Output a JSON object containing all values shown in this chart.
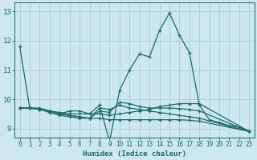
{
  "xlabel": "Humidex (Indice chaleur)",
  "bg_color": "#cce8ee",
  "line_color": "#1a6b6b",
  "grid_color": "#a8cdd4",
  "xlim": [
    -0.5,
    23.5
  ],
  "ylim": [
    8.7,
    13.3
  ],
  "yticks": [
    9,
    10,
    11,
    12,
    13
  ],
  "xticks": [
    0,
    1,
    2,
    3,
    4,
    5,
    6,
    7,
    8,
    9,
    10,
    11,
    12,
    13,
    14,
    15,
    16,
    17,
    18,
    19,
    20,
    21,
    22,
    23
  ],
  "lines": [
    {
      "x": [
        0,
        1,
        2,
        3,
        4,
        5,
        6,
        7,
        8,
        9,
        10,
        11,
        12,
        13,
        14,
        15,
        16,
        17,
        18,
        19,
        20,
        21,
        22,
        23
      ],
      "y": [
        11.8,
        9.7,
        9.7,
        9.6,
        9.5,
        9.6,
        9.6,
        9.5,
        9.8,
        8.55,
        10.3,
        11.0,
        11.55,
        11.45,
        12.35,
        12.95,
        12.2,
        11.6,
        9.8,
        9.3,
        9.2,
        9.1,
        9.05,
        8.9
      ]
    },
    {
      "x": [
        0,
        1,
        2,
        3,
        4,
        5,
        6,
        7,
        8,
        9,
        10,
        11,
        12,
        13,
        14,
        15,
        16,
        17,
        18,
        23
      ],
      "y": [
        9.7,
        9.7,
        9.65,
        9.6,
        9.55,
        9.5,
        9.5,
        9.5,
        9.5,
        9.45,
        9.5,
        9.55,
        9.6,
        9.65,
        9.75,
        9.8,
        9.85,
        9.85,
        9.85,
        8.9
      ]
    },
    {
      "x": [
        0,
        1,
        2,
        3,
        4,
        5,
        6,
        7,
        8,
        9,
        10,
        11,
        12,
        13,
        14,
        15,
        16,
        17,
        18,
        23
      ],
      "y": [
        9.7,
        9.7,
        9.65,
        9.55,
        9.45,
        9.4,
        9.35,
        9.35,
        9.6,
        9.55,
        9.9,
        9.85,
        9.75,
        9.7,
        9.7,
        9.7,
        9.68,
        9.65,
        9.6,
        8.9
      ]
    },
    {
      "x": [
        0,
        1,
        2,
        3,
        4,
        5,
        6,
        7,
        8,
        9,
        10,
        11,
        12,
        13,
        14,
        15,
        16,
        17,
        18,
        23
      ],
      "y": [
        9.7,
        9.7,
        9.65,
        9.6,
        9.5,
        9.45,
        9.4,
        9.35,
        9.35,
        9.3,
        9.3,
        9.3,
        9.3,
        9.3,
        9.3,
        9.3,
        9.3,
        9.28,
        9.25,
        8.9
      ]
    },
    {
      "x": [
        0,
        1,
        2,
        3,
        4,
        5,
        6,
        7,
        8,
        9,
        10,
        11,
        12,
        13,
        14,
        15,
        16,
        17,
        18,
        23
      ],
      "y": [
        9.7,
        9.7,
        9.65,
        9.6,
        9.5,
        9.45,
        9.4,
        9.35,
        9.7,
        9.65,
        9.8,
        9.7,
        9.65,
        9.6,
        9.55,
        9.5,
        9.45,
        9.4,
        9.35,
        8.9
      ]
    }
  ]
}
